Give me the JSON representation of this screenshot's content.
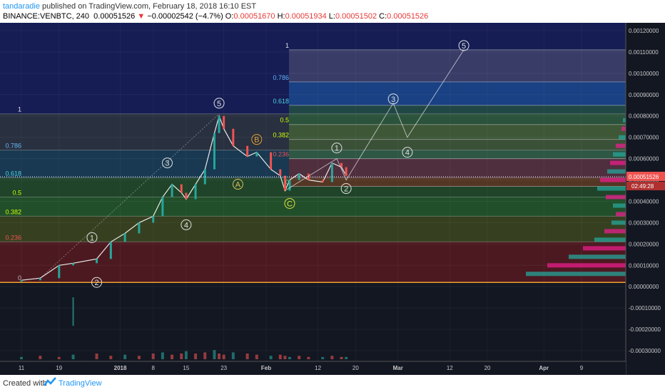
{
  "header": {
    "author": "tandaradie",
    "published": " published on TradingView.com, February 18, 2018 16:10 EST",
    "symbol": "BINANCE:VENBTC, 240",
    "last": "0.00051526",
    "arrow": "▼",
    "change": "−0.00002542 (−4.7%)",
    "o_label": "O:",
    "o_val": "0.00051670",
    "h_label": "H:",
    "h_val": "0.00051934",
    "l_label": "L:",
    "l_val": "0.00051502",
    "c_label": "C:",
    "c_val": "0.00051526"
  },
  "footer": {
    "created_with": "Created with",
    "brand": "TradingView"
  },
  "chart_data": {
    "type": "line",
    "title": "BINANCE:VENBTC, 240",
    "x_ticks": [
      "11",
      "19",
      "2018",
      "8",
      "15",
      "23",
      "Feb",
      "12",
      "20",
      "Mar",
      "12",
      "20",
      "Apr",
      "9"
    ],
    "y_ticks": [
      "0.00120000",
      "0.00110000",
      "0.00100000",
      "0.00090000",
      "0.00080000",
      "0.00070000",
      "0.00060000",
      "0.00050000",
      "0.00040000",
      "0.00030000",
      "0.00020000",
      "0.00010000",
      "0.00000000",
      "-0.00010000",
      "-0.00020000",
      "-0.00030000"
    ],
    "ylim": [
      -0.00035,
      0.00123
    ],
    "last_price_label": "0.00051526",
    "countdown_label": "02:49:28",
    "price_series": {
      "name": "VENBTC",
      "x": [
        "Dec 11",
        "Dec 15",
        "Dec 19",
        "Dec 22",
        "Dec 27",
        "Dec 30",
        "Jan 2",
        "Jan 5",
        "Jan 8",
        "Jan 10",
        "Jan 12",
        "Jan 14",
        "Jan 15",
        "Jan 17",
        "Jan 19",
        "Jan 21",
        "Jan 22",
        "Jan 23",
        "Jan 25",
        "Jan 28",
        "Jan 30",
        "Feb 2",
        "Feb 4",
        "Feb 5",
        "Feb 6",
        "Feb 8",
        "Feb 10",
        "Feb 13",
        "Feb 15",
        "Feb 17",
        "Feb 18"
      ],
      "y": [
        3e-05,
        4e-05,
        0.0001,
        0.00011,
        0.00013,
        0.00021,
        0.00025,
        0.0003,
        0.00033,
        0.00042,
        0.00048,
        0.00044,
        0.00041,
        0.00048,
        0.00055,
        0.00072,
        0.0008,
        0.00074,
        0.00066,
        0.00061,
        0.00063,
        0.00055,
        0.00052,
        0.00045,
        0.0005,
        0.00053,
        0.0005,
        0.00049,
        0.00058,
        0.00056,
        0.00052
      ]
    },
    "fib_left_levels": [
      {
        "label": "1",
        "value": 0.00081
      },
      {
        "label": "0.786",
        "value": 0.00064
      },
      {
        "label": "0.618",
        "value": 0.00051
      },
      {
        "label": "0.5",
        "value": 0.00042
      },
      {
        "label": "0.382",
        "value": 0.00033
      },
      {
        "label": "0.236",
        "value": 0.00021
      },
      {
        "label": "0",
        "value": 2e-05
      }
    ],
    "fib_right_levels": [
      {
        "label": "1",
        "value": 0.00111
      },
      {
        "label": "0.786",
        "value": 0.00096
      },
      {
        "label": "0.618",
        "value": 0.00085
      },
      {
        "label": "0.5",
        "value": 0.00076
      },
      {
        "label": "0.382",
        "value": 0.00069
      },
      {
        "label": "0.236",
        "value": 0.0006
      },
      {
        "label": "0",
        "value": 0.00047
      }
    ],
    "wave_labels": [
      {
        "label": "1",
        "x": "Dec 26",
        "y": 0.00023,
        "color": "#e0e0e0"
      },
      {
        "label": "2",
        "x": "Dec 27",
        "y": 2e-05,
        "color": "#e0e0e0"
      },
      {
        "label": "3",
        "x": "Jan 11",
        "y": 0.00058,
        "color": "#e0e0e0"
      },
      {
        "label": "4",
        "x": "Jan 15",
        "y": 0.00029,
        "color": "#e0e0e0"
      },
      {
        "label": "5",
        "x": "Jan 22",
        "y": 0.00086,
        "color": "#e0e0e0"
      },
      {
        "label": "A",
        "x": "Jan 26",
        "y": 0.00048,
        "color": "#e0c060"
      },
      {
        "label": "B",
        "x": "Jan 30",
        "y": 0.00069,
        "color": "#e0a030"
      },
      {
        "label": "C",
        "x": "Feb 6",
        "y": 0.00039,
        "color": "#e0e040"
      },
      {
        "label": "1",
        "x": "Feb 16",
        "y": 0.00065,
        "color": "#e0e0e0"
      },
      {
        "label": "2",
        "x": "Feb 18",
        "y": 0.00046,
        "color": "#e0e0e0"
      },
      {
        "label": "3",
        "x": "Feb 28",
        "y": 0.00088,
        "color": "#e0e0e0"
      },
      {
        "label": "4",
        "x": "Mar 3",
        "y": 0.00063,
        "color": "#e0e0e0"
      },
      {
        "label": "5",
        "x": "Mar 15",
        "y": 0.00113,
        "color": "#e0e0e0"
      }
    ],
    "volume_profile_colors": [
      "#26a69a",
      "#e91e8c"
    ],
    "colors": {
      "bg": "#131722",
      "up": "#26a69a",
      "down": "#ef5350",
      "fib_red": "#b71c1c",
      "fib_green": "#2e7d32",
      "fib_blue": "#1a237e",
      "price_label": "#ef5350"
    }
  }
}
